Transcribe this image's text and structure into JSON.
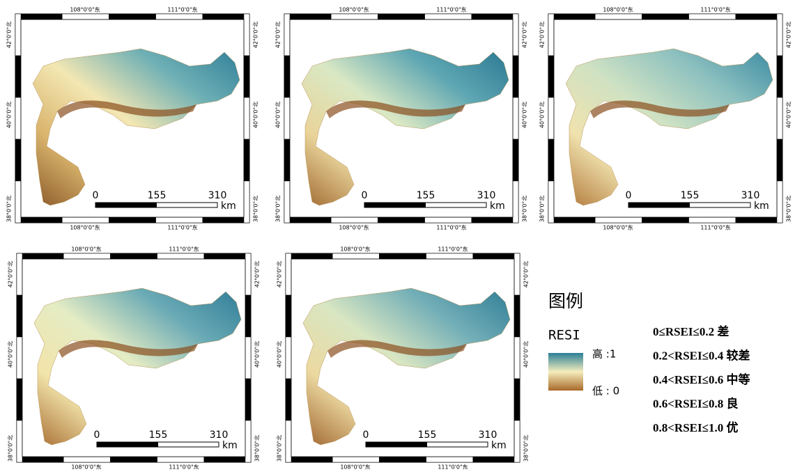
{
  "panels": [
    {
      "top_labels": [
        "108°0'0\"东",
        "111°0'0\"东"
      ],
      "bottom_labels": [
        "108°0'0\"东",
        "111°0'0\"东"
      ],
      "left_labels": [
        "42°0'0\"北",
        "40°0'0\"北",
        "38°0'0\"北"
      ],
      "right_labels": [
        "42°0'0\"北",
        "40°0'0\"北",
        "38°0'0\"北"
      ],
      "scale": {
        "ticks": [
          "0",
          "155",
          "310"
        ],
        "unit": "km"
      }
    },
    {
      "top_labels": [
        "108°0'0\"东",
        "111°0'0\"东"
      ],
      "bottom_labels": [
        "108°0'0\"东",
        "111°0'0\"东"
      ],
      "left_labels": [
        "42°0'0\"北",
        "40°0'0\"北",
        "38°0'0\"北"
      ],
      "right_labels": [
        "42°0'0\"北",
        "40°0'0\"北",
        "38°0'0\"北"
      ],
      "scale": {
        "ticks": [
          "0",
          "155",
          "310"
        ],
        "unit": "km"
      }
    },
    {
      "top_labels": [
        "108°0'0\"东",
        "111°0'0\"东"
      ],
      "bottom_labels": [
        "108°0'0\"东",
        "111°0'0\"东"
      ],
      "left_labels": [
        "42°0'0\"北",
        "40°0'0\"北",
        "38°0'0\"北"
      ],
      "right_labels": [
        "42°0'0\"北",
        "40°0'0\"北",
        "38°0'0\"北"
      ],
      "scale": {
        "ticks": [
          "0",
          "155",
          "310"
        ],
        "unit": "km"
      }
    },
    {
      "top_labels": [
        "108°0'0\"东",
        "111°0'0\"东"
      ],
      "bottom_labels": [
        "108°0'0\"东",
        "111°0'0\"东"
      ],
      "left_labels": [
        "42°0'0\"北",
        "40°0'0\"北",
        "38°0'0\"北"
      ],
      "right_labels": [
        "42°0'0\"北",
        "40°0'0\"北",
        "38°0'0\"北"
      ],
      "scale": {
        "ticks": [
          "0",
          "155",
          "310"
        ],
        "unit": "km"
      }
    },
    {
      "top_labels": [
        "108°0'0\"东",
        "111°0'0\"东"
      ],
      "bottom_labels": [
        "108°0'0\"东",
        "111°0'0\"东"
      ],
      "left_labels": [
        "42°0'0\"北",
        "40°0'0\"北",
        "38°0'0\"北"
      ],
      "right_labels": [
        "42°0'0\"北",
        "40°0'0\"北",
        "38°0'0\"北"
      ],
      "scale": {
        "ticks": [
          "0",
          "155",
          "310"
        ],
        "unit": "km"
      }
    }
  ],
  "legend": {
    "title": "图例",
    "name": "RESI",
    "high": "高 :1",
    "low": "低 : 0",
    "classes": [
      "0≤RSEI≤0.2 差",
      "0.2<RSEI≤0.4 较差",
      "0.4<RSEI≤0.6 中等",
      "0.6<RSEI≤0.8 良",
      "0.8<RSEI≤1.0 优"
    ]
  }
}
